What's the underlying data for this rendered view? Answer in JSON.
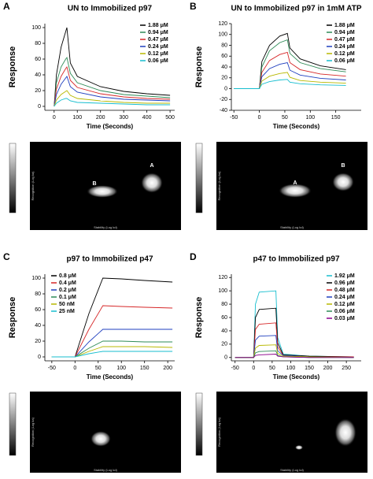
{
  "chart_data": [
    {
      "panel": "A",
      "type": "line",
      "title": "UN to Immobilized p97",
      "xlabel": "Time (Seconds)",
      "ylabel": "Response",
      "x": [
        0,
        10,
        30,
        50,
        55,
        70,
        100,
        200,
        300,
        400,
        500
      ],
      "xlim": [
        -40,
        520
      ],
      "xticks": [
        0,
        100,
        200,
        300,
        400,
        500
      ],
      "ylim": [
        -5,
        105
      ],
      "yticks": [
        0,
        20,
        40,
        60,
        80,
        100
      ],
      "legend": "upper right",
      "series": [
        {
          "name": "1.88 μM",
          "color": "#000000",
          "values": [
            0,
            40,
            75,
            95,
            100,
            55,
            38,
            25,
            19,
            16,
            14
          ]
        },
        {
          "name": "0.94 μM",
          "color": "#2e8b57",
          "values": [
            0,
            30,
            50,
            60,
            62,
            42,
            30,
            20,
            15,
            13,
            11
          ]
        },
        {
          "name": "0.47 μM",
          "color": "#d62728",
          "values": [
            0,
            22,
            38,
            48,
            50,
            33,
            24,
            16,
            12,
            10,
            9
          ]
        },
        {
          "name": "0.24 μM",
          "color": "#1f3fbf",
          "values": [
            0,
            15,
            28,
            36,
            38,
            25,
            18,
            12,
            9,
            8,
            7
          ]
        },
        {
          "name": "0.12 μM",
          "color": "#b8b800",
          "values": [
            0,
            8,
            15,
            19,
            20,
            14,
            10,
            7,
            5,
            4,
            4
          ]
        },
        {
          "name": "0.06 μM",
          "color": "#17becf",
          "values": [
            0,
            4,
            8,
            10,
            10,
            7,
            5,
            4,
            3,
            2,
            2
          ]
        }
      ],
      "heatmap": {
        "xlabel": "Stability (Log kd)",
        "ylabel": "Recognition (Log ka)",
        "spot_labels": [
          "A",
          "B"
        ]
      }
    },
    {
      "panel": "B",
      "type": "line",
      "title": "UN to Immobilized p97 in 1mM ATP",
      "xlabel": "Time (Seconds)",
      "ylabel": "Response",
      "x": [
        -50,
        0,
        5,
        20,
        40,
        55,
        60,
        80,
        120,
        170
      ],
      "xlim": [
        -55,
        200
      ],
      "xticks": [
        -50,
        0,
        50,
        100,
        150
      ],
      "ylim": [
        -40,
        120
      ],
      "yticks": [
        -40,
        -20,
        0,
        20,
        40,
        60,
        80,
        100,
        120
      ],
      "legend": "upper right",
      "series": [
        {
          "name": "1.88 μM",
          "color": "#000000",
          "values": [
            0,
            0,
            50,
            80,
            97,
            102,
            75,
            55,
            42,
            35
          ]
        },
        {
          "name": "0.94 μM",
          "color": "#2e8b57",
          "values": [
            0,
            0,
            40,
            70,
            85,
            90,
            65,
            48,
            37,
            31
          ]
        },
        {
          "name": "0.47 μM",
          "color": "#d62728",
          "values": [
            0,
            0,
            30,
            52,
            63,
            67,
            48,
            35,
            27,
            23
          ]
        },
        {
          "name": "0.24 μM",
          "color": "#1f3fbf",
          "values": [
            0,
            0,
            22,
            37,
            45,
            48,
            34,
            25,
            19,
            16
          ]
        },
        {
          "name": "0.12 μM",
          "color": "#b8b800",
          "values": [
            0,
            0,
            14,
            23,
            28,
            30,
            21,
            15,
            12,
            10
          ]
        },
        {
          "name": "0.06 μM",
          "color": "#17becf",
          "values": [
            0,
            0,
            8,
            13,
            16,
            17,
            12,
            9,
            7,
            6
          ]
        }
      ],
      "heatmap": {
        "xlabel": "Stability (Log kd)",
        "ylabel": "Recognition (Log ka)",
        "spot_labels": [
          "B",
          "A"
        ]
      }
    },
    {
      "panel": "C",
      "type": "line",
      "title": "p97 to Immobilized p47",
      "xlabel": "Time (Seconds)",
      "ylabel": "Response",
      "x": [
        -50,
        0,
        30,
        60,
        100,
        150,
        210
      ],
      "xlim": [
        -65,
        215
      ],
      "xticks": [
        -50,
        0,
        50,
        100,
        150,
        200
      ],
      "ylim": [
        -5,
        105
      ],
      "yticks": [
        0,
        20,
        40,
        60,
        80,
        100
      ],
      "legend": "upper left",
      "series": [
        {
          "name": "0.8 μM",
          "color": "#000000",
          "values": [
            0,
            0,
            55,
            100,
            99,
            97,
            95
          ]
        },
        {
          "name": "0.4 μM",
          "color": "#d62728",
          "values": [
            0,
            0,
            35,
            65,
            64,
            63,
            62
          ]
        },
        {
          "name": "0.2 μM",
          "color": "#1f3fbf",
          "values": [
            0,
            0,
            19,
            35,
            35,
            35,
            35
          ]
        },
        {
          "name": "0.1 μM",
          "color": "#2e8b57",
          "values": [
            0,
            0,
            11,
            20,
            20,
            19,
            19
          ]
        },
        {
          "name": "50 nM",
          "color": "#b8b800",
          "values": [
            0,
            0,
            7,
            13,
            13,
            13,
            12
          ]
        },
        {
          "name": "25 nM",
          "color": "#17becf",
          "values": [
            0,
            0,
            4,
            7,
            7,
            7,
            7
          ]
        }
      ],
      "heatmap": {
        "xlabel": "Stability (Log kd)",
        "ylabel": "Recognition (Log ka)",
        "spot_labels": []
      }
    },
    {
      "panel": "D",
      "type": "line",
      "title": "p47 to Immobilized p97",
      "xlabel": "Time (Seconds)",
      "ylabel": "Response",
      "x": [
        -50,
        0,
        5,
        15,
        60,
        65,
        80,
        150,
        270
      ],
      "xlim": [
        -60,
        290
      ],
      "xticks": [
        -50,
        0,
        50,
        100,
        150,
        200,
        250
      ],
      "ylim": [
        -5,
        125
      ],
      "yticks": [
        0,
        20,
        40,
        60,
        80,
        100,
        120
      ],
      "legend": "upper right",
      "series": [
        {
          "name": "1.92 μM",
          "color": "#17becf",
          "values": [
            0,
            0,
            80,
            98,
            100,
            30,
            5,
            2,
            1
          ]
        },
        {
          "name": "0.96 μM",
          "color": "#000000",
          "values": [
            0,
            0,
            60,
            72,
            74,
            22,
            4,
            2,
            1
          ]
        },
        {
          "name": "0.48 μM",
          "color": "#d62728",
          "values": [
            0,
            0,
            42,
            50,
            52,
            16,
            3,
            1,
            1
          ]
        },
        {
          "name": "0.24 μM",
          "color": "#1f3fbf",
          "values": [
            0,
            0,
            26,
            32,
            33,
            10,
            3,
            1,
            0
          ]
        },
        {
          "name": "0.12 μM",
          "color": "#b8b800",
          "values": [
            0,
            0,
            14,
            18,
            19,
            6,
            2,
            1,
            0
          ]
        },
        {
          "name": "0.06 μM",
          "color": "#2e8b57",
          "values": [
            0,
            0,
            7,
            9,
            10,
            3,
            1,
            0,
            0
          ]
        },
        {
          "name": "0.03 μM",
          "color": "#8b008b",
          "values": [
            0,
            0,
            3,
            4,
            5,
            2,
            1,
            0,
            0
          ]
        }
      ],
      "heatmap": {
        "xlabel": "Stability (Log kd)",
        "ylabel": "Recognition (Log ka)",
        "spot_labels": []
      }
    }
  ]
}
